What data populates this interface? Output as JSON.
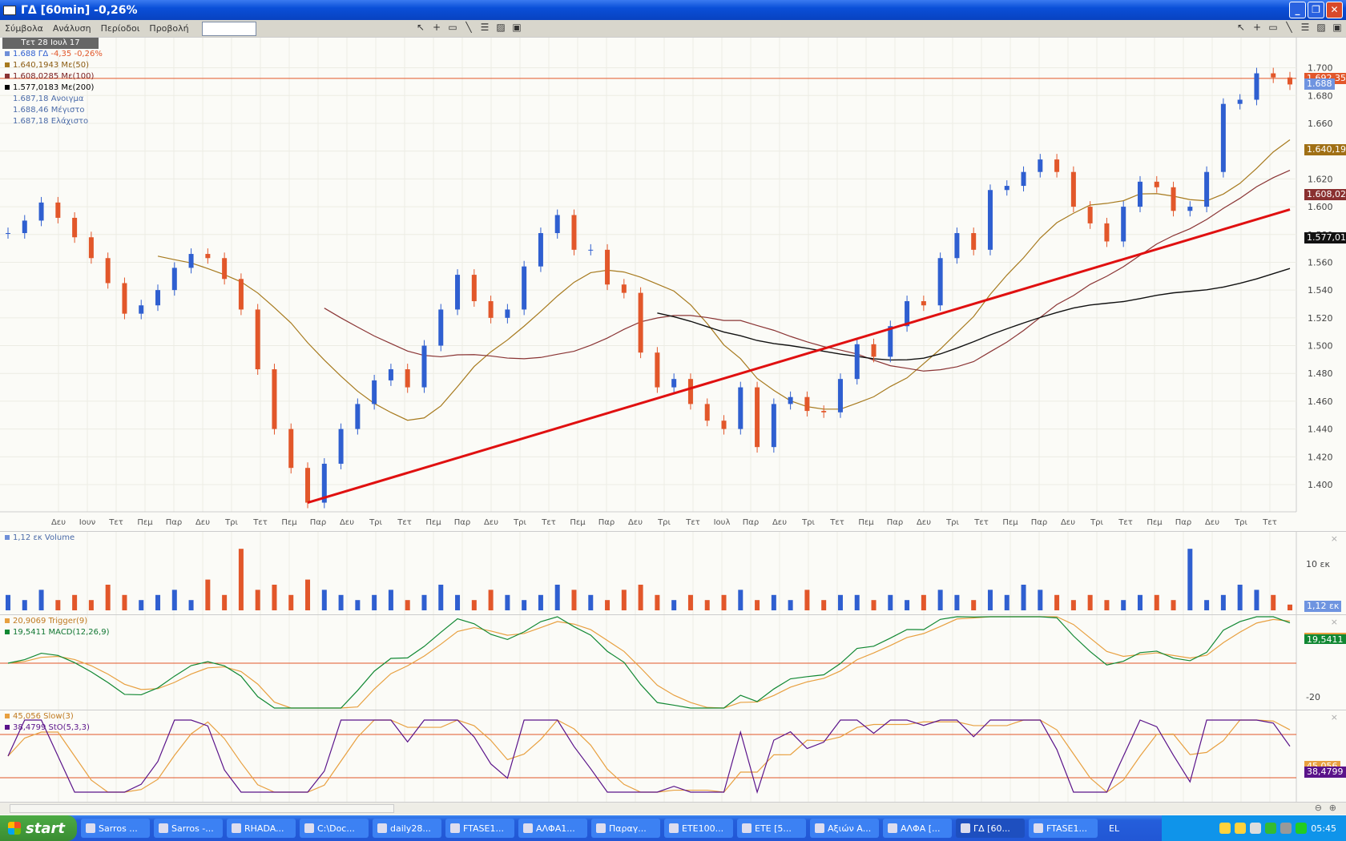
{
  "window": {
    "title": "ΓΔ [60min] -0,26%"
  },
  "menu": [
    "Σύμβολα",
    "Ανάλυση",
    "Περίοδοι",
    "Προβολή"
  ],
  "symbol_input": "",
  "toolbar_icons": [
    "pointer-icon",
    "crosshair-icon",
    "rectangle-icon",
    "line-icon",
    "fibonacci-icon",
    "chart-icon",
    "save-icon"
  ],
  "legend": {
    "date": "Τετ 28 Ιουλ 17",
    "price": {
      "value": "1.688 ΓΔ",
      "change": "-4,35 -0,26%"
    },
    "ma50": "1.640,1943 Με(50)",
    "ma100": "1.608,0285 Με(100)",
    "ma200": "1.577,0183 Με(200)",
    "open": "1.687,18 Ανοιγμα",
    "high": "1.688,46 Μέγιστο",
    "low": "1.687,18 Ελάχιστο"
  },
  "price_axis": {
    "ticks": [
      "1.700",
      "1.680",
      "1.660",
      "1.640",
      "1.620",
      "1.600",
      "1.580",
      "1.560",
      "1.540",
      "1.520",
      "1.500",
      "1.480",
      "1.460",
      "1.440",
      "1.420",
      "1.400"
    ]
  },
  "right_tags": {
    "hline": "1.692,35",
    "last": "1.688",
    "ma50": "1.640,194",
    "ma100": "1.608,028",
    "ma200": "1.577,018",
    "volume": "1,12 εκ",
    "macd": "19,5411",
    "stoch": "38,4799",
    "slow": "45,056"
  },
  "x_labels": [
    "Δευ",
    "Ιουν",
    "Τετ",
    "Πεμ",
    "Παρ",
    "Δευ",
    "Τρι",
    "Τετ",
    "Πεμ",
    "Παρ",
    "Δευ",
    "Τρι",
    "Τετ",
    "Πεμ",
    "Παρ",
    "Δευ",
    "Τρι",
    "Τετ",
    "Πεμ",
    "Παρ",
    "Δευ",
    "Τρι",
    "Τετ",
    "Ιουλ",
    "Παρ",
    "Δευ",
    "Τρι",
    "Τετ",
    "Πεμ",
    "Παρ",
    "Δευ",
    "Τρι",
    "Τετ",
    "Πεμ",
    "Παρ",
    "Δευ",
    "Τρι",
    "Τετ",
    "Πεμ",
    "Παρ",
    "Δευ",
    "Τρι",
    "Τετ"
  ],
  "volume_panel": {
    "label": "1,12 εκ Volume",
    "axis_label": "10 εκ"
  },
  "macd_panel": {
    "trigger": "20,9069 Trigger(9)",
    "macd": "19,5411 MACD(12,26,9)",
    "axis_label": "-20"
  },
  "stoch_panel": {
    "slow": "45,056 Slow(3)",
    "sto": "38,4799 StO(5,3,3)"
  },
  "colors": {
    "up": "#2f5fd0",
    "down": "#e2572a",
    "ma50": "#a77a1e",
    "ma100": "#8a3434",
    "ma200": "#111111",
    "trend": "#e01010",
    "hline": "#e2572a",
    "macd": "#118833",
    "trigger": "#e8a040",
    "stoch": "#5a138a"
  },
  "chart_data": {
    "type": "candlestick",
    "closes": [
      1.581,
      1.59,
      1.603,
      1.592,
      1.578,
      1.563,
      1.545,
      1.523,
      1.529,
      1.54,
      1.556,
      1.566,
      1.563,
      1.548,
      1.526,
      1.483,
      1.44,
      1.412,
      1.387,
      1.415,
      1.44,
      1.458,
      1.475,
      1.483,
      1.47,
      1.5,
      1.526,
      1.551,
      1.532,
      1.52,
      1.526,
      1.557,
      1.581,
      1.594,
      1.569,
      1.569,
      1.544,
      1.538,
      1.495,
      1.47,
      1.476,
      1.458,
      1.446,
      1.44,
      1.47,
      1.427,
      1.458,
      1.463,
      1.453,
      1.452,
      1.476,
      1.501,
      1.492,
      1.514,
      1.532,
      1.529,
      1.563,
      1.581,
      1.569,
      1.612,
      1.615,
      1.625,
      1.634,
      1.625,
      1.6,
      1.588,
      1.575,
      1.6,
      1.618,
      1.614,
      1.597,
      1.6,
      1.625,
      1.674,
      1.677,
      1.696,
      1.693,
      1.688
    ],
    "volumes": [
      3,
      2,
      4,
      2,
      3,
      2,
      5,
      3,
      2,
      3,
      4,
      2,
      6,
      3,
      12,
      4,
      5,
      3,
      6,
      4,
      3,
      2,
      3,
      4,
      2,
      3,
      5,
      3,
      2,
      4,
      3,
      2,
      3,
      5,
      4,
      3,
      2,
      4,
      5,
      3,
      2,
      3,
      2,
      3,
      4,
      2,
      3,
      2,
      4,
      2,
      3,
      3,
      2,
      3,
      2,
      3,
      4,
      3,
      2,
      4,
      3,
      5,
      4,
      3,
      2,
      3,
      2,
      2,
      3,
      3,
      2,
      12,
      2,
      3,
      5,
      4,
      3,
      1.12
    ],
    "hline": 1.69235,
    "trendline": {
      "from": [
        18,
        1.387
      ],
      "to": [
        77,
        1.598
      ]
    },
    "ylim": [
      1.38,
      1.715
    ],
    "ma_periods": [
      50,
      100,
      200
    ],
    "stoch_levels": [
      80,
      20
    ]
  }
}
